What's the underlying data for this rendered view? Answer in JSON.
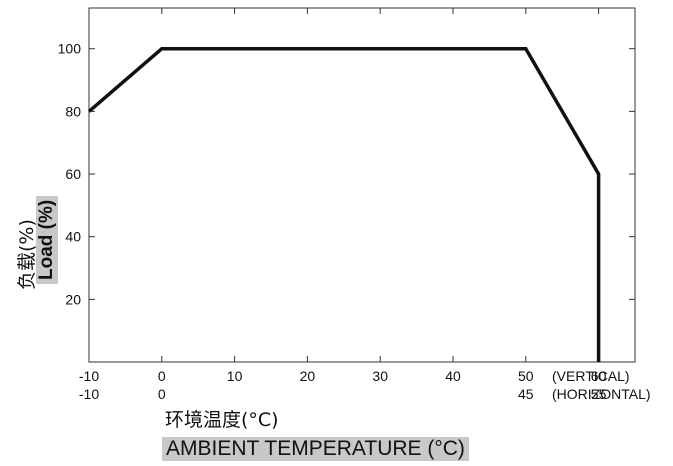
{
  "chart_data": {
    "type": "line",
    "title": "",
    "ylabel_cn": "负载(%)",
    "ylabel_en": "Load (%)",
    "xlabel_cn": "环境温度(°C)",
    "xlabel_en": "AMBIENT TEMPERATURE (°C)",
    "x_axis_vertical": {
      "ticks": [
        "-10",
        "0",
        "10",
        "20",
        "30",
        "40",
        "50",
        "60"
      ],
      "label": "(VERTICAL)"
    },
    "x_axis_horizontal": {
      "ticks": [
        "-10",
        "0",
        "45",
        "55"
      ],
      "label": "(HORIZONTAL)"
    },
    "y_ticks": [
      "20",
      "40",
      "60",
      "80",
      "100"
    ],
    "xlim": [
      -10,
      65
    ],
    "ylim": [
      0,
      113
    ],
    "grid": false,
    "series": [
      {
        "x": [
          -10,
          0,
          50,
          60,
          60
        ],
        "y": [
          80,
          100,
          100,
          60,
          0
        ]
      }
    ]
  }
}
